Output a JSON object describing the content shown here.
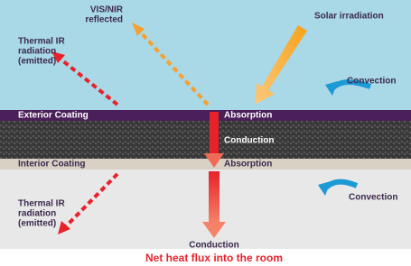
{
  "exterior": {
    "vis_nir": [
      "VIS/NIR",
      "reflected"
    ],
    "thermal_ir": [
      "Thermal IR",
      "radiation",
      "(emitted)"
    ],
    "solar": "Solar irradiation",
    "convection": "Convection"
  },
  "layers": {
    "exterior_coating": "Exterior Coating",
    "exterior_absorption": "Absorption",
    "conduction": "Conduction",
    "interior_coating": "Interior Coating",
    "interior_absorption": "Absorption"
  },
  "interior": {
    "convection": "Convection",
    "thermal_ir": [
      "Thermal IR",
      "radiation",
      "(emitted)"
    ],
    "conduction": "Conduction",
    "net_flux": "Net heat flux into the room"
  }
}
